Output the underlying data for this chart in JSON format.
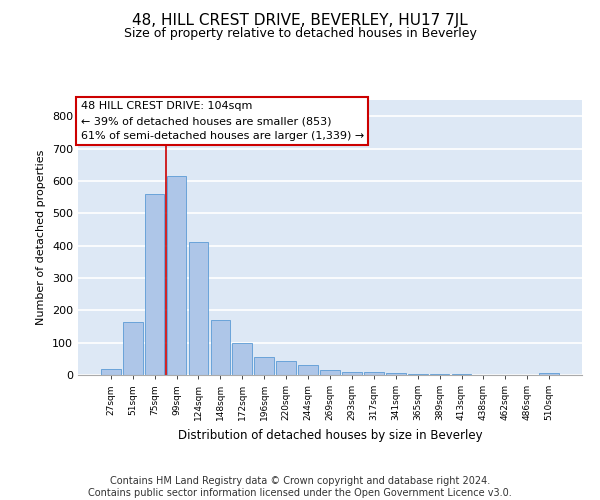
{
  "title": "48, HILL CREST DRIVE, BEVERLEY, HU17 7JL",
  "subtitle": "Size of property relative to detached houses in Beverley",
  "xlabel": "Distribution of detached houses by size in Beverley",
  "ylabel": "Number of detached properties",
  "categories": [
    "27sqm",
    "51sqm",
    "75sqm",
    "99sqm",
    "124sqm",
    "148sqm",
    "172sqm",
    "196sqm",
    "220sqm",
    "244sqm",
    "269sqm",
    "293sqm",
    "317sqm",
    "341sqm",
    "365sqm",
    "389sqm",
    "413sqm",
    "438sqm",
    "462sqm",
    "486sqm",
    "510sqm"
  ],
  "values": [
    20,
    165,
    560,
    615,
    410,
    170,
    100,
    55,
    43,
    32,
    15,
    10,
    8,
    5,
    4,
    3,
    2,
    1,
    1,
    1,
    5
  ],
  "bar_color": "#aec6e8",
  "bar_edge_color": "#5b9bd5",
  "background_color": "#dde8f5",
  "grid_color": "#ffffff",
  "ylim": [
    0,
    850
  ],
  "yticks": [
    0,
    100,
    200,
    300,
    400,
    500,
    600,
    700,
    800
  ],
  "annotation_text": "48 HILL CREST DRIVE: 104sqm\n← 39% of detached houses are smaller (853)\n61% of semi-detached houses are larger (1,339) →",
  "annotation_box_color": "#ffffff",
  "annotation_box_edge": "#cc0000",
  "footer_text": "Contains HM Land Registry data © Crown copyright and database right 2024.\nContains public sector information licensed under the Open Government Licence v3.0.",
  "title_fontsize": 11,
  "subtitle_fontsize": 9,
  "annot_fontsize": 8,
  "footer_fontsize": 7
}
